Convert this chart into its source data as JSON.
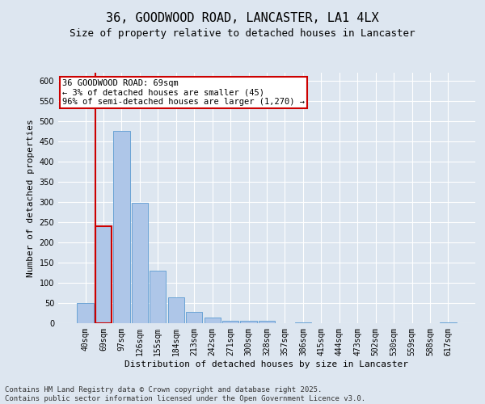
{
  "title": "36, GOODWOOD ROAD, LANCASTER, LA1 4LX",
  "subtitle": "Size of property relative to detached houses in Lancaster",
  "xlabel": "Distribution of detached houses by size in Lancaster",
  "ylabel": "Number of detached properties",
  "categories": [
    "40sqm",
    "69sqm",
    "97sqm",
    "126sqm",
    "155sqm",
    "184sqm",
    "213sqm",
    "242sqm",
    "271sqm",
    "300sqm",
    "328sqm",
    "357sqm",
    "386sqm",
    "415sqm",
    "444sqm",
    "473sqm",
    "502sqm",
    "530sqm",
    "559sqm",
    "588sqm",
    "617sqm"
  ],
  "values": [
    50,
    240,
    475,
    298,
    130,
    65,
    28,
    14,
    7,
    7,
    6,
    0,
    3,
    0,
    0,
    0,
    0,
    0,
    0,
    0,
    3
  ],
  "bar_color": "#aec6e8",
  "bar_edge_color": "#6aa3d5",
  "highlight_bar_index": 1,
  "highlight_edge_color": "#cc0000",
  "annotation_text": "36 GOODWOOD ROAD: 69sqm\n← 3% of detached houses are smaller (45)\n96% of semi-detached houses are larger (1,270) →",
  "annotation_box_color": "#ffffff",
  "annotation_box_edge_color": "#cc0000",
  "vline_color": "#cc0000",
  "ylim": [
    0,
    620
  ],
  "yticks": [
    0,
    50,
    100,
    150,
    200,
    250,
    300,
    350,
    400,
    450,
    500,
    550,
    600
  ],
  "background_color": "#dde6f0",
  "plot_background_color": "#dde6f0",
  "grid_color": "#ffffff",
  "footer_line1": "Contains HM Land Registry data © Crown copyright and database right 2025.",
  "footer_line2": "Contains public sector information licensed under the Open Government Licence v3.0.",
  "title_fontsize": 11,
  "subtitle_fontsize": 9,
  "xlabel_fontsize": 8,
  "ylabel_fontsize": 8,
  "tick_fontsize": 7,
  "footer_fontsize": 6.5,
  "annotation_fontsize": 7.5
}
